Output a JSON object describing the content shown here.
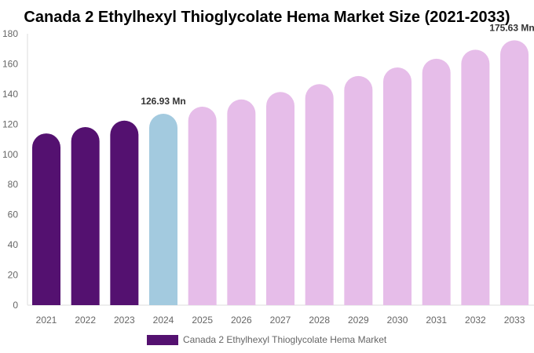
{
  "chart_data": {
    "type": "bar",
    "title": "Canada 2 Ethylhexyl Thioglycolate Hema Market Size (2021-2033)",
    "categories": [
      "2021",
      "2022",
      "2023",
      "2024",
      "2025",
      "2026",
      "2027",
      "2028",
      "2029",
      "2030",
      "2031",
      "2032",
      "2033"
    ],
    "series": [
      {
        "name": "Canada 2 Ethylhexyl Thioglycolate Hema Market",
        "values": [
          113.9,
          118.1,
          122.4,
          126.93,
          131.6,
          136.4,
          141.4,
          146.6,
          152.0,
          157.6,
          163.4,
          169.4,
          175.63
        ]
      }
    ],
    "data_labels": [
      {
        "index": 3,
        "text": "126.93 Mn"
      },
      {
        "index": 12,
        "text": "175.63 Mn"
      }
    ],
    "ylim": [
      0,
      180
    ],
    "yticks": [
      0,
      20,
      40,
      60,
      80,
      100,
      120,
      140,
      160,
      180
    ],
    "grid": false,
    "legend_position": "bottom",
    "colors": {
      "historical": "#541170",
      "current": "#a3cadf",
      "forecast": "#e6bde9"
    }
  }
}
